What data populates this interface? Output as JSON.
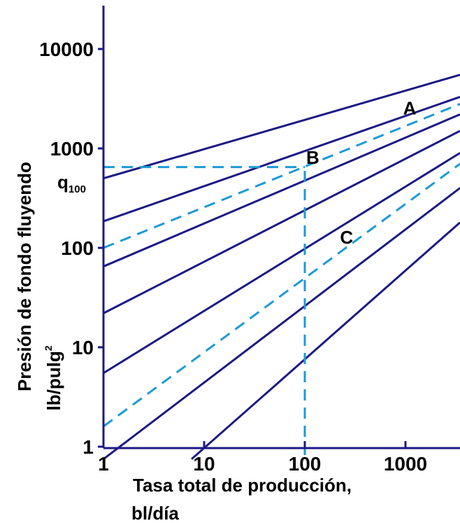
{
  "chart_data": {
    "type": "line",
    "xscale": "log",
    "yscale": "log",
    "xlim": [
      1,
      3500
    ],
    "ylim": [
      0.7,
      25000
    ],
    "xlabel_line1": "Tasa total de producción,",
    "xlabel_line2": "bl/día",
    "ylabel_line1": "Presión de fondo fluyendo",
    "ylabel_line2_base": "lb/pulg",
    "ylabel_line2_sup": "2",
    "x_ticks": [
      {
        "value": 1,
        "label": "1"
      },
      {
        "value": 10,
        "label": "10"
      },
      {
        "value": 100,
        "label": "100"
      },
      {
        "value": 1000,
        "label": "1000"
      }
    ],
    "y_ticks": [
      {
        "value": 1,
        "label": "1"
      },
      {
        "value": 10,
        "label": "10"
      },
      {
        "value": 100,
        "label": "100"
      },
      {
        "value": 1000,
        "label": "1000"
      },
      {
        "value": 10000,
        "label": "10000"
      }
    ],
    "series": [
      {
        "style": "solid",
        "x": [
          1,
          3500
        ],
        "y": [
          500,
          5500
        ]
      },
      {
        "style": "solid",
        "x": [
          1,
          3500
        ],
        "y": [
          185,
          3300
        ]
      },
      {
        "style": "solid",
        "x": [
          1,
          3500
        ],
        "y": [
          65,
          2200
        ]
      },
      {
        "style": "solid",
        "x": [
          1,
          3500
        ],
        "y": [
          22,
          1500
        ]
      },
      {
        "style": "solid",
        "x": [
          1,
          3500
        ],
        "y": [
          5.5,
          900
        ]
      },
      {
        "style": "solid",
        "x": [
          1,
          3500
        ],
        "y": [
          0.75,
          400
        ]
      },
      {
        "style": "solid",
        "x": [
          7.5,
          3500
        ],
        "y": [
          0.75,
          180
        ]
      },
      {
        "style": "dashed",
        "x": [
          1,
          3500
        ],
        "y": [
          100,
          2800
        ]
      },
      {
        "style": "dashed",
        "x": [
          1,
          3500
        ],
        "y": [
          1.6,
          700
        ]
      }
    ],
    "guide_lines": [
      {
        "style": "dashed",
        "x": [
          1,
          100
        ],
        "y": [
          650,
          650
        ]
      },
      {
        "style": "dashed",
        "x": [
          100,
          100
        ],
        "y": [
          0.6,
          650
        ]
      }
    ],
    "annotations": [
      {
        "text": "A",
        "x": 1100,
        "y": 2200
      },
      {
        "text": "B",
        "x": 120,
        "y": 700
      },
      {
        "text": "C",
        "x": 260,
        "y": 110
      }
    ],
    "q100_label": {
      "base": "q",
      "sub": "100",
      "y": 650
    },
    "colors": {
      "solid": "#1c1a85",
      "dashed": "#1c9ad6",
      "axis": "#1c1a85"
    }
  }
}
